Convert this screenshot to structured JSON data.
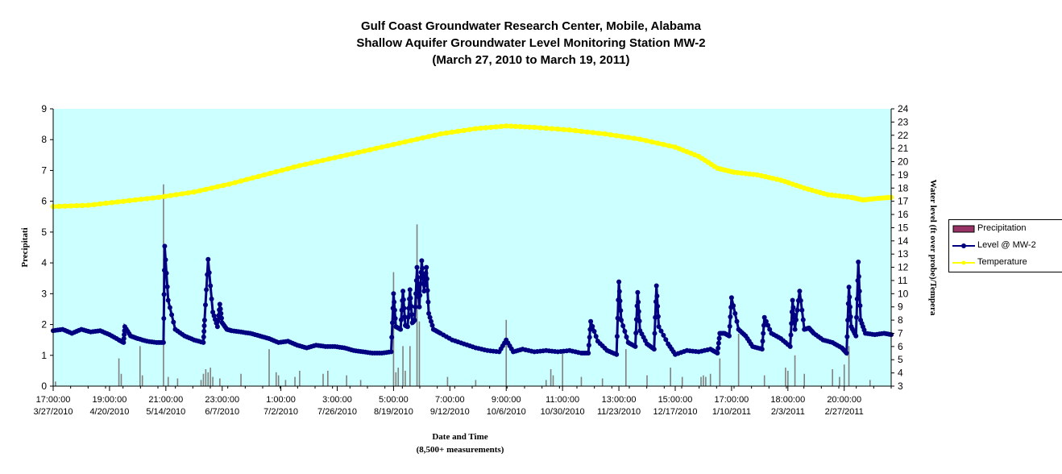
{
  "title": {
    "line1": "Gulf Coast Groundwater Research Center, Mobile, Alabama",
    "line2": "Shallow Aquifer Groundwater Level Monitoring Station MW-2",
    "line3": "(March 27, 2010 to March 19, 2011)"
  },
  "chart_data": {
    "type": "line",
    "plot_background": "#ccffff",
    "xlabel": "Date and Time",
    "xlabel_sub": "(8,500+ measurements)",
    "ylabel": "Precipitati",
    "y2label": "Water level (ft over probe)/Tempera",
    "ylim": [
      0,
      9
    ],
    "y_ticks": [
      "0",
      "1",
      "2",
      "3",
      "4",
      "5",
      "6",
      "7",
      "8",
      "9"
    ],
    "y2lim": [
      3,
      24
    ],
    "y2_ticks": [
      "3",
      "4",
      "5",
      "6",
      "7",
      "8",
      "9",
      "10",
      "11",
      "12",
      "13",
      "14",
      "15",
      "16",
      "17",
      "18",
      "19",
      "20",
      "21",
      "22",
      "23",
      "24"
    ],
    "x_days_span": 357,
    "x_ticks": [
      {
        "day": 0,
        "time": "17:00:00",
        "date": "3/27/2010"
      },
      {
        "day": 24,
        "time": "19:00:00",
        "date": "4/20/2010"
      },
      {
        "day": 48,
        "time": "21:00:00",
        "date": "5/14/2010"
      },
      {
        "day": 72,
        "time": "23:00:00",
        "date": "6/7/2010"
      },
      {
        "day": 97,
        "time": "1:00:00",
        "date": "7/2/2010"
      },
      {
        "day": 121,
        "time": "3:00:00",
        "date": "7/26/2010"
      },
      {
        "day": 145,
        "time": "5:00:00",
        "date": "8/19/2010"
      },
      {
        "day": 169,
        "time": "7:00:00",
        "date": "9/12/2010"
      },
      {
        "day": 193,
        "time": "9:00:00",
        "date": "10/6/2010"
      },
      {
        "day": 217,
        "time": "11:00:00",
        "date": "10/30/2010"
      },
      {
        "day": 241,
        "time": "13:00:00",
        "date": "11/23/2010"
      },
      {
        "day": 265,
        "time": "15:00:00",
        "date": "12/17/2010"
      },
      {
        "day": 289,
        "time": "17:00:00",
        "date": "1/10/2011"
      },
      {
        "day": 313,
        "time": "18:00:00",
        "date": "2/3/2011"
      },
      {
        "day": 337,
        "time": "20:00:00",
        "date": "2/27/2011"
      }
    ],
    "series": [
      {
        "name": "Precipitation",
        "axis": "left",
        "kind": "bar",
        "color": "#993366",
        "x": [
          1,
          28,
          29,
          37,
          38,
          47,
          49,
          53,
          63,
          64,
          65,
          66,
          67,
          68,
          71,
          80,
          92,
          95,
          96,
          99,
          103,
          105,
          115,
          117,
          125,
          131,
          145,
          146,
          147,
          149,
          150,
          152,
          155,
          156,
          168,
          180,
          193,
          210,
          212,
          213,
          217,
          225,
          234,
          244,
          253,
          263,
          268,
          276,
          277,
          278,
          280,
          284,
          292,
          303,
          312,
          313,
          316,
          320,
          332,
          335,
          337,
          339,
          348
        ],
        "values": [
          0.15,
          0.9,
          0.4,
          1.3,
          0.35,
          6.55,
          0.3,
          0.25,
          0.2,
          0.4,
          0.55,
          0.45,
          0.6,
          0.3,
          0.25,
          0.4,
          1.2,
          0.45,
          0.35,
          0.2,
          0.3,
          0.5,
          0.4,
          0.5,
          0.35,
          0.2,
          3.7,
          0.45,
          0.6,
          1.3,
          0.5,
          1.3,
          5.25,
          2.1,
          0.3,
          0.2,
          2.15,
          0.2,
          0.55,
          0.35,
          1.2,
          0.3,
          0.25,
          1.2,
          0.35,
          0.6,
          0.3,
          0.3,
          0.35,
          0.3,
          0.4,
          0.9,
          1.7,
          0.35,
          0.6,
          0.5,
          1.0,
          0.4,
          0.55,
          0.3,
          0.7,
          1.3,
          0.2
        ]
      },
      {
        "name": "Level @ MW-2",
        "axis": "right",
        "kind": "line-markers",
        "color": "#000080",
        "x": [
          0,
          4,
          8,
          12,
          16,
          20,
          24,
          28,
          30,
          30.5,
          33,
          36,
          40,
          44,
          47,
          47.5,
          49,
          52,
          56,
          60,
          64,
          64.5,
          66,
          68,
          70,
          71,
          72,
          74,
          76,
          80,
          84,
          88,
          92,
          96,
          100,
          104,
          108,
          112,
          116,
          120,
          124,
          128,
          132,
          136,
          140,
          144,
          145,
          146,
          148,
          149,
          150,
          151,
          152,
          153,
          154,
          155,
          156,
          157,
          158,
          159,
          160,
          162,
          165,
          170,
          175,
          180,
          185,
          190,
          193,
          196,
          200,
          205,
          210,
          215,
          220,
          225,
          228,
          229,
          232,
          236,
          240,
          241,
          242,
          245,
          248,
          249,
          250,
          253,
          256,
          257,
          258,
          262,
          265,
          270,
          275,
          280,
          283,
          284,
          286,
          288,
          289,
          292,
          295,
          298,
          302,
          303,
          306,
          310,
          314,
          315,
          316,
          318,
          320,
          322,
          324,
          328,
          332,
          336,
          338,
          339,
          340,
          342,
          343,
          344,
          346,
          350,
          354,
          357
        ],
        "values": [
          7.2,
          7.3,
          7.0,
          7.3,
          7.1,
          7.2,
          6.9,
          6.5,
          6.3,
          7.5,
          6.8,
          6.6,
          6.4,
          6.3,
          6.3,
          13.6,
          9.5,
          7.3,
          6.8,
          6.5,
          6.3,
          8.0,
          12.6,
          8.6,
          7.5,
          9.2,
          7.8,
          7.3,
          7.2,
          7.1,
          7.0,
          6.8,
          6.6,
          6.3,
          6.4,
          6.1,
          5.9,
          6.1,
          6.0,
          6.0,
          5.9,
          5.7,
          5.6,
          5.5,
          5.5,
          5.6,
          10.0,
          7.5,
          7.3,
          10.2,
          7.6,
          7.5,
          10.3,
          7.8,
          8.0,
          12.0,
          9.0,
          12.5,
          10.2,
          12.0,
          8.5,
          7.3,
          7.0,
          6.5,
          6.2,
          5.9,
          5.7,
          5.6,
          6.5,
          5.6,
          5.8,
          5.6,
          5.7,
          5.6,
          5.7,
          5.5,
          5.5,
          7.9,
          6.4,
          5.7,
          5.4,
          10.9,
          8.0,
          6.3,
          6.0,
          10.1,
          7.2,
          6.2,
          5.8,
          10.6,
          7.5,
          6.2,
          5.4,
          5.7,
          5.6,
          5.8,
          5.5,
          7.0,
          7.0,
          6.8,
          9.7,
          7.3,
          6.8,
          6.0,
          5.8,
          8.2,
          7.0,
          6.6,
          6.0,
          9.5,
          7.3,
          10.2,
          7.3,
          7.4,
          7.0,
          6.5,
          6.3,
          5.9,
          5.5,
          10.5,
          7.5,
          6.8,
          12.4,
          8.0,
          7.0,
          6.9,
          7.0,
          6.9
        ]
      },
      {
        "name": "Temperature",
        "axis": "right",
        "kind": "line-markers",
        "color": "#ffff00",
        "x": [
          0,
          15,
          30,
          45,
          60,
          75,
          90,
          105,
          120,
          135,
          150,
          165,
          180,
          193,
          205,
          220,
          235,
          250,
          265,
          275,
          283,
          290,
          300,
          310,
          320,
          330,
          340,
          345,
          350,
          357
        ],
        "values": [
          16.6,
          16.7,
          17.0,
          17.3,
          17.7,
          18.3,
          19.0,
          19.7,
          20.3,
          20.9,
          21.5,
          22.1,
          22.5,
          22.7,
          22.6,
          22.4,
          22.1,
          21.7,
          21.1,
          20.4,
          19.5,
          19.2,
          19.0,
          18.6,
          18.0,
          17.5,
          17.3,
          17.1,
          17.2,
          17.3
        ]
      }
    ],
    "legend": {
      "position": "right",
      "items": [
        "Precipitation",
        "Level @ MW-2",
        "Temperature"
      ]
    }
  }
}
